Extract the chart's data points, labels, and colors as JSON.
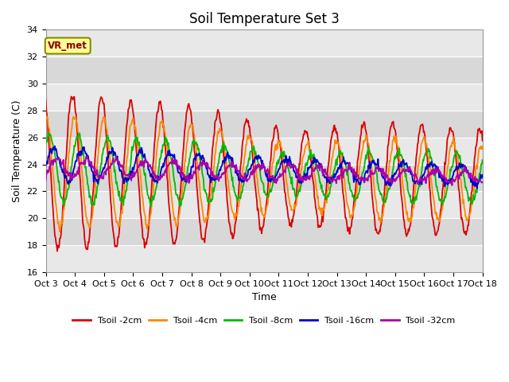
{
  "title": "Soil Temperature Set 3",
  "xlabel": "Time",
  "ylabel": "Soil Temperature (C)",
  "ylim": [
    16,
    34
  ],
  "lines": [
    {
      "label": "Tsoil -2cm",
      "color": "#dd0000",
      "lw": 1.3
    },
    {
      "label": "Tsoil -4cm",
      "color": "#ff8800",
      "lw": 1.3
    },
    {
      "label": "Tsoil -8cm",
      "color": "#00bb00",
      "lw": 1.3
    },
    {
      "label": "Tsoil -16cm",
      "color": "#0000cc",
      "lw": 1.3
    },
    {
      "label": "Tsoil -32cm",
      "color": "#aa00aa",
      "lw": 1.3
    }
  ],
  "x_tick_labels": [
    "Oct 3",
    "Oct 4",
    "Oct 5",
    "Oct 6",
    "Oct 7",
    "Oct 8",
    "Oct 9",
    "Oct 10",
    "Oct 11",
    "Oct 12",
    "Oct 13",
    "Oct 14",
    "Oct 15",
    "Oct 16",
    "Oct 17",
    "Oct 18"
  ],
  "annotation_text": "VR_met",
  "title_fontsize": 12,
  "axis_fontsize": 9,
  "tick_fontsize": 8,
  "band_colors": [
    "#e8e8e8",
    "#d8d8d8"
  ],
  "grid_color": "white"
}
